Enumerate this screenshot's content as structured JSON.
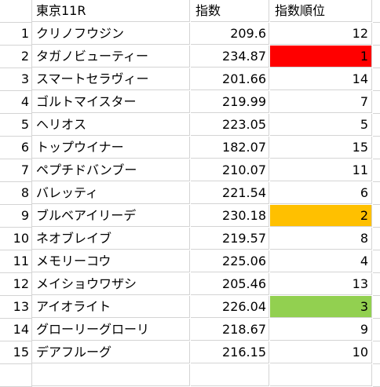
{
  "header": {
    "col_name": "東京11R",
    "col_index": "指数",
    "col_rank": "指数順位"
  },
  "highlight_colors": {
    "red": "#ff0000",
    "orange": "#ffc000",
    "green": "#92d050"
  },
  "rows": [
    {
      "num": "1",
      "name": "クリノフウジン",
      "index": "209.6",
      "rank": "12",
      "fill": ""
    },
    {
      "num": "2",
      "name": "タガノビューティー",
      "index": "234.87",
      "rank": "1",
      "fill": "#ff0000"
    },
    {
      "num": "3",
      "name": "スマートセラヴィー",
      "index": "201.66",
      "rank": "14",
      "fill": ""
    },
    {
      "num": "4",
      "name": "ゴルトマイスター",
      "index": "219.99",
      "rank": "7",
      "fill": ""
    },
    {
      "num": "5",
      "name": "ヘリオス",
      "index": "223.05",
      "rank": "5",
      "fill": ""
    },
    {
      "num": "6",
      "name": "トップウイナー",
      "index": "182.07",
      "rank": "15",
      "fill": ""
    },
    {
      "num": "7",
      "name": "ペプチドバンブー",
      "index": "210.07",
      "rank": "11",
      "fill": ""
    },
    {
      "num": "8",
      "name": "バレッティ",
      "index": "221.54",
      "rank": "6",
      "fill": ""
    },
    {
      "num": "9",
      "name": "ブルベアイリーデ",
      "index": "230.18",
      "rank": "2",
      "fill": "#ffc000"
    },
    {
      "num": "10",
      "name": "ネオブレイブ",
      "index": "219.57",
      "rank": "8",
      "fill": ""
    },
    {
      "num": "11",
      "name": "メモリーコウ",
      "index": "225.06",
      "rank": "4",
      "fill": ""
    },
    {
      "num": "12",
      "name": "メイショウワザシ",
      "index": "205.46",
      "rank": "13",
      "fill": ""
    },
    {
      "num": "13",
      "name": "アイオライト",
      "index": "226.04",
      "rank": "3",
      "fill": "#92d050"
    },
    {
      "num": "14",
      "name": "グローリーグローリ",
      "index": "218.67",
      "rank": "9",
      "fill": ""
    },
    {
      "num": "15",
      "name": "デアフルーグ",
      "index": "216.15",
      "rank": "10",
      "fill": ""
    }
  ]
}
